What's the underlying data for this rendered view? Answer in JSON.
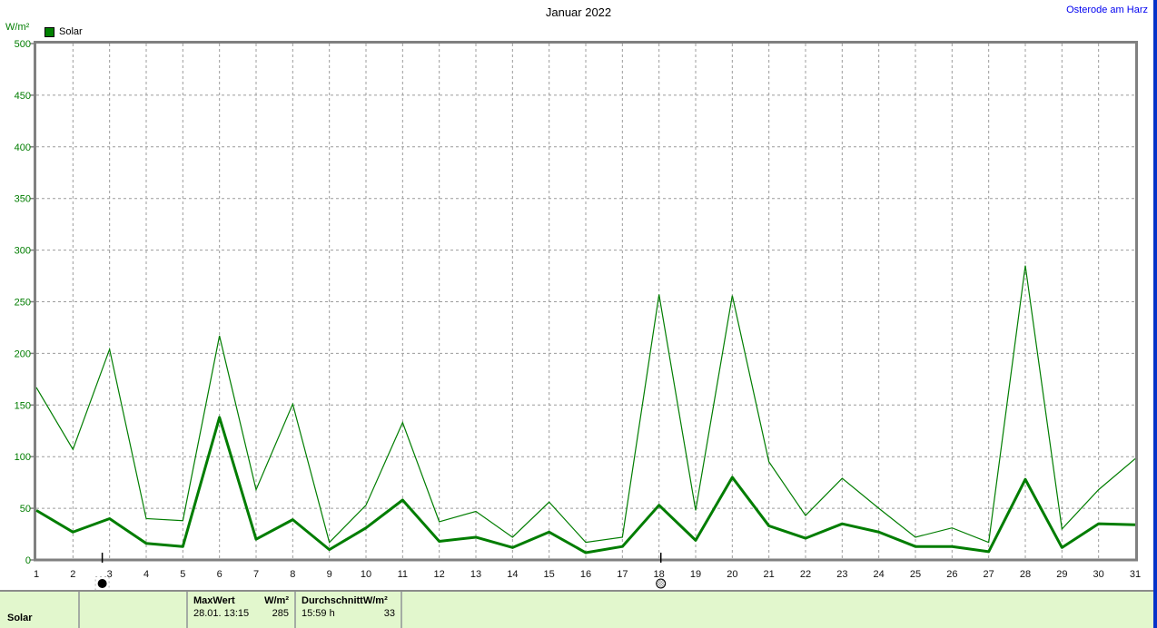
{
  "header": {
    "title": "Januar 2022",
    "station_link": "Osterode am Harz",
    "station_color": "#0000f0",
    "unit_label": "W/m²",
    "legend": {
      "label": "Solar",
      "swatch_color": "#008000"
    }
  },
  "chart_data": {
    "type": "line",
    "title": "Januar 2022",
    "ylabel": "W/m²",
    "xlabel": "",
    "ylim": [
      0,
      500
    ],
    "y_ticks": [
      0,
      50,
      100,
      150,
      200,
      250,
      300,
      350,
      400,
      450,
      500
    ],
    "categories": [
      1,
      2,
      3,
      4,
      5,
      6,
      7,
      8,
      9,
      10,
      11,
      12,
      13,
      14,
      15,
      16,
      17,
      18,
      19,
      20,
      21,
      22,
      23,
      24,
      25,
      26,
      27,
      28,
      29,
      30,
      31
    ],
    "grid": true,
    "legend_position": "top-left",
    "legend_entries": [
      "Solar"
    ],
    "series": [
      {
        "id": "max",
        "line_weight": "thin",
        "color": "#007d00",
        "values": [
          167,
          107,
          204,
          40,
          38,
          217,
          68,
          151,
          17,
          53,
          133,
          37,
          47,
          22,
          56,
          17,
          22,
          257,
          48,
          256,
          95,
          43,
          79,
          50,
          22,
          31,
          17,
          285,
          30,
          68,
          98
        ]
      },
      {
        "id": "mean",
        "line_weight": "thick",
        "color": "#007d00",
        "values": [
          48,
          27,
          40,
          16,
          13,
          138,
          20,
          39,
          10,
          31,
          58,
          18,
          22,
          12,
          27,
          7,
          13,
          53,
          19,
          80,
          33,
          21,
          35,
          27,
          13,
          13,
          8,
          78,
          12,
          35,
          34
        ]
      }
    ],
    "annotations": [
      {
        "type": "new-moon",
        "day": 2.8
      },
      {
        "type": "full-moon",
        "day": 18.05
      }
    ]
  },
  "footer_table": {
    "row_label": "Solar",
    "columns": [
      {
        "header_label": "MaxWert",
        "header_unit": "W/m²",
        "value_left": "28.01.  13:15",
        "value_right": "285"
      },
      {
        "header_label": "Durchschnitt",
        "header_unit": "W/m²",
        "value_left": "15:59 h",
        "value_right": "33"
      }
    ]
  }
}
